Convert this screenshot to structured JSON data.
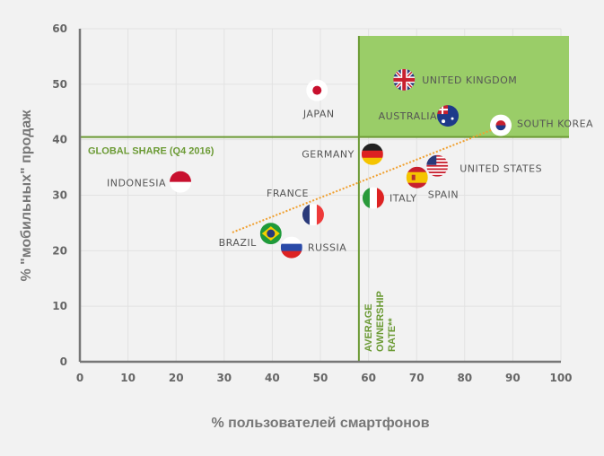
{
  "chart_data": {
    "type": "scatter",
    "title": "",
    "xlabel": "% пользователей смартфонов",
    "ylabel": "% \"мобильных\" продаж",
    "xlim": [
      0,
      100
    ],
    "ylim": [
      0,
      60
    ],
    "xticks": [
      "0",
      "10",
      "20",
      "30",
      "40",
      "50",
      "60",
      "70",
      "80",
      "90",
      "100"
    ],
    "yticks": [
      "0",
      "10",
      "20",
      "30",
      "40",
      "50",
      "60"
    ],
    "grid": true,
    "points": [
      {
        "country": "UNITED KINGDOM",
        "x": 67.4,
        "y": 50.8,
        "flag": "uk"
      },
      {
        "country": "JAPAN",
        "x": 49.3,
        "y": 48.9,
        "flag": "jp"
      },
      {
        "country": "AUSTRALIA",
        "x": 76.5,
        "y": 44.3,
        "flag": "au"
      },
      {
        "country": "SOUTH KOREA",
        "x": 87.5,
        "y": 42.6,
        "flag": "kr"
      },
      {
        "country": "GERMANY",
        "x": 60.8,
        "y": 37.4,
        "flag": "de"
      },
      {
        "country": "UNITED STATES",
        "x": 74.3,
        "y": 35.3,
        "flag": "us"
      },
      {
        "country": "SPAIN",
        "x": 70.1,
        "y": 33.2,
        "flag": "es"
      },
      {
        "country": "INDONESIA",
        "x": 20.9,
        "y": 32.4,
        "flag": "id"
      },
      {
        "country": "ITALY",
        "x": 61.0,
        "y": 29.5,
        "flag": "it"
      },
      {
        "country": "FRANCE",
        "x": 48.5,
        "y": 26.5,
        "flag": "fr"
      },
      {
        "country": "BRAZIL",
        "x": 39.7,
        "y": 23.1,
        "flag": "br"
      },
      {
        "country": "RUSSIA",
        "x": 44.0,
        "y": 20.6,
        "flag": "ru"
      }
    ],
    "reference_lines": {
      "global_share": {
        "label": "GLOBAL SHARE (Q4 2016)",
        "y": 40.5
      },
      "average_ownership": {
        "label_lines": [
          "AVERAGE",
          "OWNERSHIP",
          "RATE**"
        ],
        "x": 58.0
      }
    },
    "highlight_region": {
      "x_from": 58.0,
      "y_from": 40.5
    },
    "trendline": {
      "x1": 31.7,
      "y1": 23.3,
      "x2": 86.6,
      "y2": 42.1
    },
    "colors": {
      "green": "#6b9a34",
      "highlight": "#9acd68",
      "trend": "#f0a030",
      "axis": "#777777",
      "grid": "#e2e2e2"
    }
  }
}
